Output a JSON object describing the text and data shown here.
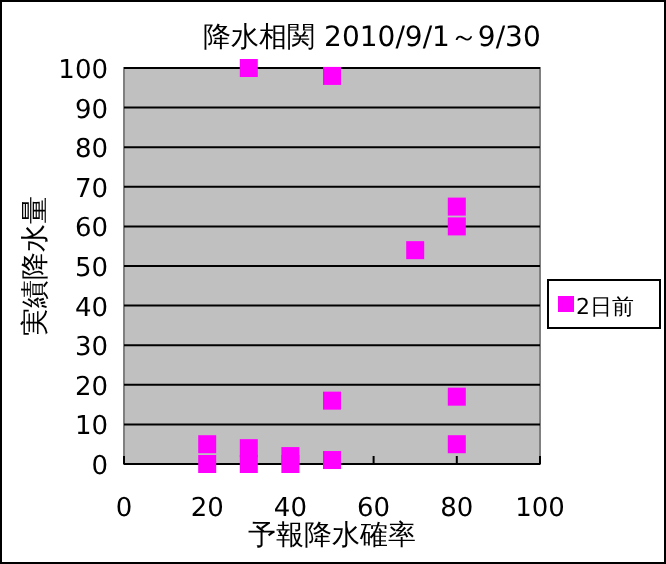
{
  "chart_data": {
    "type": "scatter",
    "title": "降水相関 2010/9/1～9/30",
    "xlabel": "予報降水確率",
    "ylabel": "実績降水量",
    "series": [
      {
        "name": "2日前",
        "color": "#ff00ff",
        "x": [
          20,
          20,
          30,
          30,
          40,
          40,
          50,
          50,
          50,
          70,
          80,
          80,
          80,
          80,
          30
        ],
        "values": [
          0,
          5,
          0,
          4,
          0,
          2,
          1,
          16,
          98,
          54,
          5,
          17,
          60,
          65,
          100
        ]
      }
    ],
    "xlim": [
      0,
      100
    ],
    "ylim": [
      0,
      100
    ],
    "xticks": [
      0,
      20,
      40,
      60,
      80,
      100
    ],
    "yticks": [
      0,
      10,
      20,
      30,
      40,
      50,
      60,
      70,
      80,
      90,
      100
    ],
    "grid": "y",
    "legend": "right",
    "marker": "square"
  }
}
